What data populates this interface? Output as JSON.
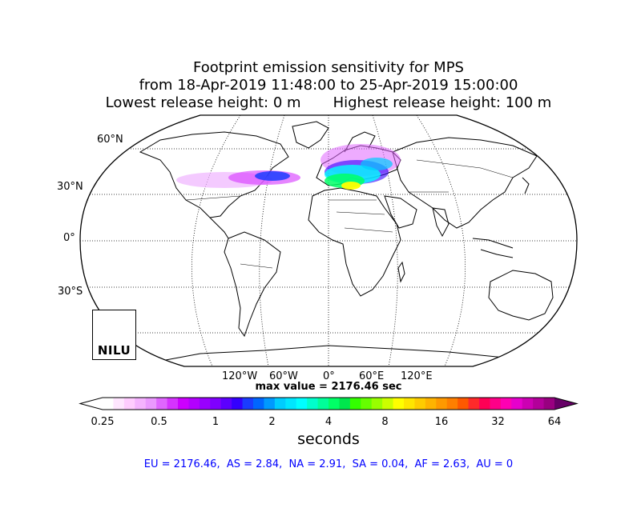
{
  "title": {
    "line1": "Footprint emission sensitivity for MPS",
    "line2": "from 18-Apr-2019 11:48:00 to 25-Apr-2019 15:00:00",
    "line3": "Lowest release height: 0 m       Highest release height: 100 m"
  },
  "map": {
    "projection": "robinson",
    "lat_labels": [
      "60°N",
      "30°N",
      "0°",
      "30°S"
    ],
    "lon_labels": [
      "120°W",
      "60°W",
      "0°",
      "60°E",
      "120°E"
    ],
    "logo_text": "NILU"
  },
  "max_value_text": "max value = 2176.46 sec",
  "colorbar": {
    "ticks": [
      "0.25",
      "0.5",
      "1",
      "2",
      "4",
      "8",
      "16",
      "32",
      "64"
    ],
    "units": "seconds",
    "colors": [
      "#ffffff",
      "#ffe6ff",
      "#ffccff",
      "#f5b3ff",
      "#eb99ff",
      "#e066ff",
      "#d633ff",
      "#cc00ff",
      "#b300ff",
      "#9900ff",
      "#7f00ff",
      "#5c00ff",
      "#3300ff",
      "#1a3cff",
      "#0066ff",
      "#0099ff",
      "#00ccff",
      "#00e6ff",
      "#00ffff",
      "#00ffcc",
      "#00ff99",
      "#00ff66",
      "#00e64d",
      "#33ff00",
      "#66ff00",
      "#99ff00",
      "#ccff00",
      "#ffff00",
      "#ffe600",
      "#ffcc00",
      "#ffb300",
      "#ff9900",
      "#ff7f00",
      "#ff5900",
      "#ff2a2a",
      "#ff0055",
      "#ff0088",
      "#ff00b3",
      "#e600cc",
      "#cc00b3",
      "#b3009a",
      "#990080"
    ]
  },
  "regions_text": "EU = 2176.46,  AS = 2.84,  NA = 2.91,  SA = 0.04,  AF = 2.63,  AU = 0"
}
